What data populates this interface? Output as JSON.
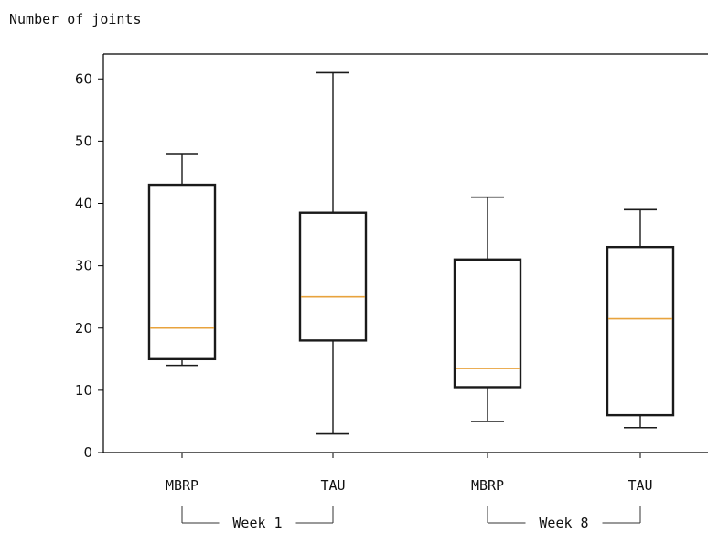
{
  "chart_data": {
    "type": "box",
    "title": "Number of joints",
    "ylim": [
      0,
      64
    ],
    "yticks": [
      0,
      10,
      20,
      30,
      40,
      50,
      60
    ],
    "grid": false,
    "colors": {
      "box": "#1a1a1a",
      "median": "#e8a33d",
      "axis": "#000000"
    },
    "boxes": [
      {
        "label": "MBRP",
        "group": "Week 1",
        "whisker_low": 14,
        "q1": 15,
        "median": 20,
        "q3": 43,
        "whisker_high": 48
      },
      {
        "label": "TAU",
        "group": "Week 1",
        "whisker_low": 3,
        "q1": 18,
        "median": 25,
        "q3": 38.5,
        "whisker_high": 61
      },
      {
        "label": "MBRP",
        "group": "Week 8",
        "whisker_low": 5,
        "q1": 10.5,
        "median": 13.5,
        "q3": 31,
        "whisker_high": 41
      },
      {
        "label": "TAU",
        "group": "Week 8",
        "whisker_low": 4,
        "q1": 6,
        "median": 21.5,
        "q3": 33,
        "whisker_high": 39
      }
    ],
    "groups": [
      "Week 1",
      "Week 8"
    ]
  }
}
